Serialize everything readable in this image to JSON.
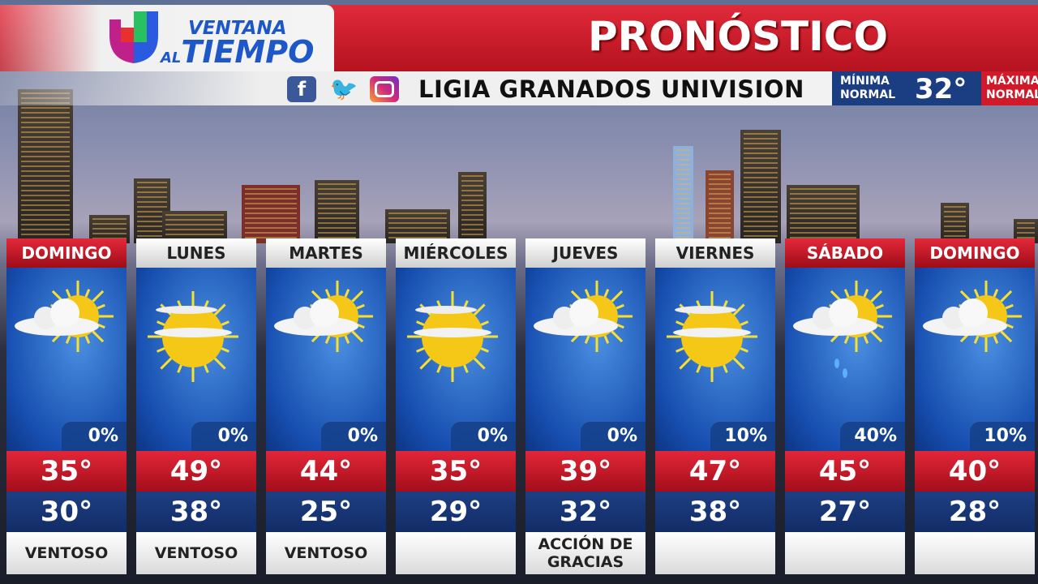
{
  "header": {
    "brand_line1": "VENTANA",
    "brand_al": "AL",
    "brand_line2": "TIEMPO",
    "title": "PRONÓSTICO"
  },
  "social": {
    "facebook": "f",
    "twitter": "t",
    "instagram": "ig",
    "host": "LIGIA GRANADOS UNIVISION"
  },
  "normals": {
    "min_label1": "MÍNIMA",
    "min_label2": "NORMAL",
    "min_value": "32°",
    "max_label1": "MÁXIMA",
    "max_label2": "NORMAL"
  },
  "colors": {
    "red": "#d01a2a",
    "navy": "#1a3a7e",
    "sky_blue": "#2a6fd0"
  },
  "days": [
    {
      "name": "DOMINGO",
      "weekend": true,
      "icon": "partly-cloudy",
      "precip": "0%",
      "high": "35°",
      "low": "30°",
      "note": "VENTOSO"
    },
    {
      "name": "LUNES",
      "weekend": false,
      "icon": "mostly-sunny",
      "precip": "0%",
      "high": "49°",
      "low": "38°",
      "note": "VENTOSO"
    },
    {
      "name": "MARTES",
      "weekend": false,
      "icon": "partly-cloudy",
      "precip": "0%",
      "high": "44°",
      "low": "25°",
      "note": "VENTOSO"
    },
    {
      "name": "MIÉRCOLES",
      "weekend": false,
      "icon": "mostly-sunny",
      "precip": "0%",
      "high": "35°",
      "low": "29°",
      "note": ""
    },
    {
      "name": "JUEVES",
      "weekend": false,
      "icon": "partly-cloudy",
      "precip": "0%",
      "high": "39°",
      "low": "32°",
      "note": "ACCIÓN DE GRACIAS"
    },
    {
      "name": "VIERNES",
      "weekend": false,
      "icon": "mostly-sunny",
      "precip": "10%",
      "high": "47°",
      "low": "38°",
      "note": ""
    },
    {
      "name": "SÁBADO",
      "weekend": true,
      "icon": "sun-cloud-rain",
      "precip": "40%",
      "high": "45°",
      "low": "27°",
      "note": ""
    },
    {
      "name": "DOMINGO",
      "weekend": true,
      "icon": "partly-cloudy",
      "precip": "10%",
      "high": "40°",
      "low": "28°",
      "note": ""
    }
  ]
}
